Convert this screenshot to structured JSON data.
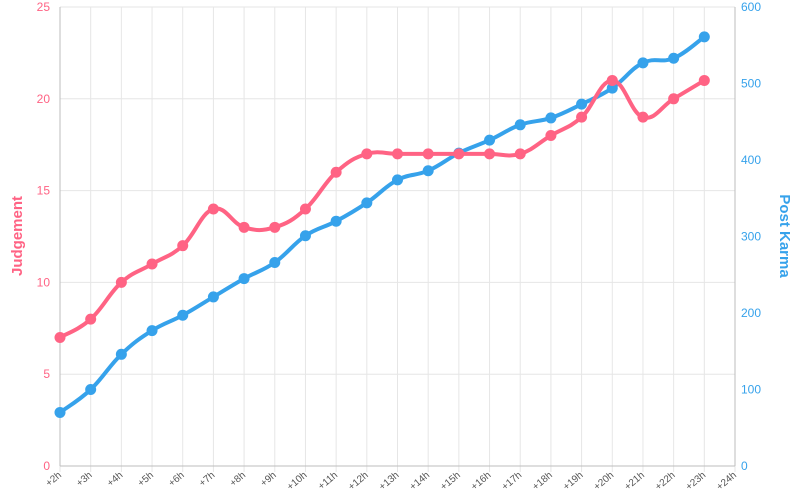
{
  "chart_data": {
    "type": "line",
    "categories": [
      "+2h",
      "+3h",
      "+4h",
      "+5h",
      "+6h",
      "+7h",
      "+8h",
      "+9h",
      "+10h",
      "+11h",
      "+12h",
      "+13h",
      "+14h",
      "+15h",
      "+16h",
      "+17h",
      "+18h",
      "+19h",
      "+20h",
      "+21h",
      "+22h",
      "+23h",
      "+24h"
    ],
    "series": [
      {
        "name": "Judgement",
        "axis": "left",
        "color": "#ff6384",
        "values": [
          7,
          8,
          10,
          11,
          12,
          14,
          13,
          13,
          14,
          16,
          17,
          17,
          17,
          17,
          17,
          17,
          18,
          19,
          21,
          19,
          20,
          21,
          null
        ]
      },
      {
        "name": "Post Karma",
        "axis": "right",
        "color": "#36a2eb",
        "values": [
          70,
          100,
          146,
          177,
          197,
          221,
          245,
          266,
          301,
          320,
          344,
          374,
          386,
          409,
          426,
          446,
          455,
          473,
          494,
          527,
          533,
          561,
          null
        ]
      }
    ],
    "ylabel_left": "Judgement",
    "ylabel_right": "Post Karma",
    "ylim_left": [
      0,
      25
    ],
    "yticks_left": [
      0,
      5,
      10,
      15,
      20,
      25
    ],
    "ylim_right": [
      0,
      600
    ],
    "yticks_right": [
      0,
      100,
      200,
      300,
      400,
      500,
      600
    ],
    "grid": true,
    "colors": {
      "left_axis": "#ff6384",
      "right_axis": "#36a2eb",
      "grid": "#e6e6e6"
    }
  }
}
